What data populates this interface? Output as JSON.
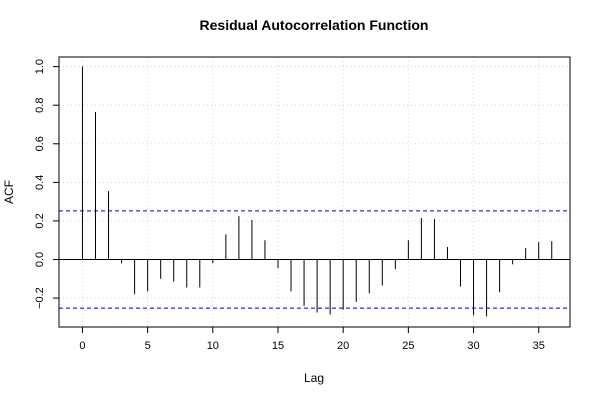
{
  "chart_data": {
    "type": "bar",
    "title": "Residual Autocorrelation Function",
    "xlabel": "Lag",
    "ylabel": "ACF",
    "x": [
      0,
      1,
      2,
      3,
      4,
      5,
      6,
      7,
      8,
      9,
      10,
      11,
      12,
      13,
      14,
      15,
      16,
      17,
      18,
      19,
      20,
      21,
      22,
      23,
      24,
      25,
      26,
      27,
      28,
      29,
      30,
      31,
      32,
      33,
      34,
      35,
      36
    ],
    "values": [
      1.0,
      0.765,
      0.355,
      -0.02,
      -0.18,
      -0.165,
      -0.1,
      -0.115,
      -0.145,
      -0.145,
      -0.02,
      0.13,
      0.225,
      0.205,
      0.1,
      -0.045,
      -0.165,
      -0.24,
      -0.275,
      -0.285,
      -0.26,
      -0.22,
      -0.175,
      -0.135,
      -0.05,
      0.1,
      0.215,
      0.21,
      0.065,
      -0.14,
      -0.29,
      -0.295,
      -0.17,
      -0.025,
      0.06,
      0.09,
      0.095
    ],
    "confidence_bound": 0.252,
    "xlim": [
      -1.8,
      37.4
    ],
    "ylim": [
      -0.35,
      1.05
    ],
    "xticks": [
      0,
      5,
      10,
      15,
      20,
      25,
      30,
      35
    ],
    "xtick_labels": [
      "0",
      "5",
      "10",
      "15",
      "20",
      "25",
      "30",
      "35"
    ],
    "yticks": [
      -0.2,
      0.0,
      0.2,
      0.4,
      0.6,
      0.8,
      1.0
    ],
    "ytick_labels": [
      "−0.2",
      "0.0",
      "0.2",
      "0.4",
      "0.6",
      "0.8",
      "1.0"
    ],
    "grid": true,
    "colors": {
      "bars": "#000000",
      "bounds": "#0000cc",
      "zero_line": "#000000",
      "grid": "#d3d3d3"
    }
  }
}
